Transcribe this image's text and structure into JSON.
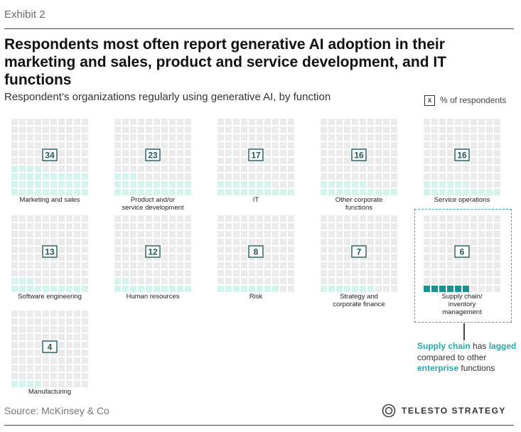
{
  "header": {
    "exhibit": "Exhibit 2",
    "title": "Respondents most often report generative AI adoption in their marketing and sales, product and service development, and IT functions",
    "subtitle": "Respondent’s organizations regularly using generative AI, by function"
  },
  "legend": {
    "symbol": "x",
    "label": "% of respondents"
  },
  "chart_data": {
    "type": "waffle",
    "unit": "% of respondents",
    "grid": "10x10 squares per function (each square = 1%)",
    "categories": [
      "Marketing and sales",
      "Product and/or service development",
      "IT",
      "Other corporate functions",
      "Service operations",
      "Software engineering",
      "Human resources",
      "Risk",
      "Strategy and corporate finance",
      "Supply chain/ inventory management",
      "Manufacturing"
    ],
    "values": [
      34,
      23,
      17,
      16,
      16,
      13,
      12,
      8,
      7,
      6,
      4
    ],
    "labels": [
      [
        "Marketing and sales"
      ],
      [
        "Product and/or",
        "service development"
      ],
      [
        "IT"
      ],
      [
        "Other corporate",
        "functions"
      ],
      [
        "Service operations"
      ],
      [
        "Software engineering"
      ],
      [
        "Human resources"
      ],
      [
        "Risk"
      ],
      [
        "Strategy and",
        "corporate finance"
      ],
      [
        "Supply chain/",
        "inventory",
        "management"
      ],
      [
        "Manufacturing"
      ]
    ],
    "highlight": "Supply chain/ inventory management",
    "colors": {
      "empty": "#ebebeb",
      "filled": "#d4f3ec",
      "highlight_filled": "#1f8f8f",
      "value_box": "#1e5a5a"
    }
  },
  "callout": {
    "parts": [
      {
        "text": "Supply chain",
        "hl": true
      },
      {
        "text": " has ",
        "hl": false
      },
      {
        "text": "lagged",
        "hl": true
      },
      {
        "text": " compared to other ",
        "hl": false
      },
      {
        "text": "enterprise",
        "hl": true
      },
      {
        "text": " functions",
        "hl": false
      }
    ]
  },
  "footer": {
    "source": "Source: McKinsey & Co",
    "brand": "TELESTO STRATEGY"
  }
}
